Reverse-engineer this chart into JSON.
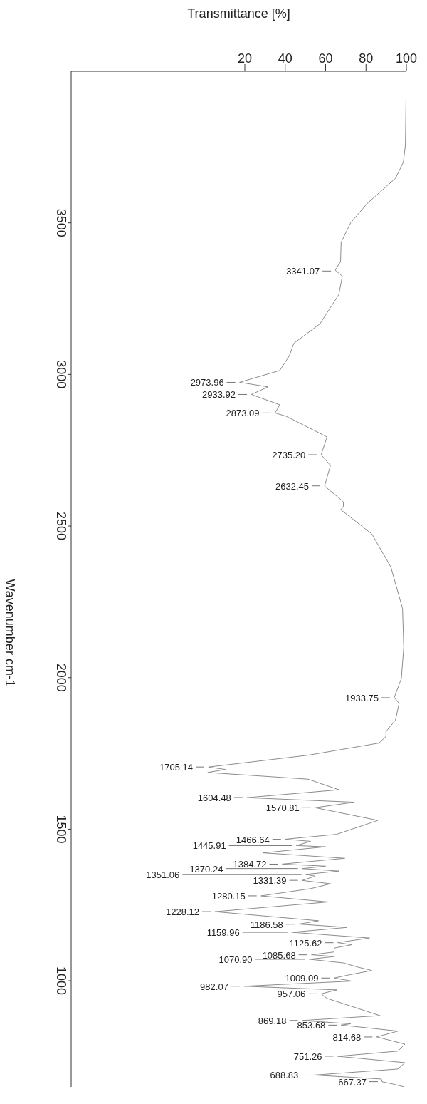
{
  "chart_data": {
    "type": "line",
    "orientation": "horizontal",
    "xlabel": "Transmittance [%]",
    "ylabel": "Wavenumber cm-1",
    "xlim": [
      -66,
      100
    ],
    "xticks": [
      20,
      40,
      60,
      80,
      100
    ],
    "ylim": [
      650,
      4000
    ],
    "yticks": [
      1000,
      1500,
      2000,
      2500,
      3000,
      3500
    ],
    "series": [
      {
        "color": "#8c8c8c",
        "x": [
          4000,
          3900,
          3756,
          3700,
          3647,
          3564,
          3500,
          3436,
          3372,
          3344,
          3324,
          3263,
          3167,
          3103,
          3061,
          3013,
          2974,
          2959,
          2934,
          2900,
          2873,
          2862,
          2794,
          2735,
          2700,
          2632,
          2580,
          2564,
          2554,
          2474,
          2365,
          2228,
          2099,
          1997,
          1934,
          1915,
          1860,
          1822,
          1806,
          1784,
          1744,
          1705,
          1697,
          1687,
          1665,
          1630,
          1604,
          1589,
          1571,
          1529,
          1483,
          1467,
          1460,
          1446,
          1442,
          1422,
          1404,
          1385,
          1378,
          1370,
          1362,
          1351,
          1345,
          1331,
          1320,
          1304,
          1280,
          1260,
          1228,
          1198,
          1187,
          1176,
          1160,
          1141,
          1126,
          1119,
          1108,
          1095,
          1086,
          1080,
          1071,
          1059,
          1045,
          1034,
          1020,
          1009,
          999,
          982,
          970,
          957,
          942,
          885,
          869,
          858,
          854,
          834,
          815,
          791,
          768,
          751,
          730,
          709,
          689,
          676,
          667,
          660,
          650
        ],
        "values": [
          100,
          99.8,
          99.5,
          98.5,
          94.6,
          80.6,
          72.4,
          67.7,
          67.4,
          64.8,
          68.3,
          66.5,
          57.2,
          44.3,
          42,
          37.3,
          17.4,
          31.5,
          23.2,
          37.3,
          35,
          40.5,
          60.7,
          57.8,
          62.4,
          59.5,
          68.8,
          68.8,
          67.5,
          82.9,
          92.3,
          98.1,
          98.7,
          97.5,
          94,
          96.4,
          94.6,
          89.9,
          89.9,
          86.4,
          51.3,
          2,
          10.4,
          1.6,
          51.3,
          66.6,
          21,
          74.2,
          54.8,
          85.9,
          65.4,
          40,
          52.6,
          45.5,
          60,
          29.1,
          69.5,
          38.5,
          60,
          48.4,
          66.6,
          50.2,
          54.9,
          48.4,
          62.5,
          52.6,
          28,
          61.3,
          5.2,
          56.5,
          46.7,
          70.6,
          43.2,
          81.8,
          66,
          73,
          64.3,
          64.2,
          53,
          64.2,
          51.9,
          68.8,
          76,
          82.9,
          72,
          64.2,
          73,
          19.6,
          65.5,
          57.8,
          60.7,
          87,
          48.4,
          72.4,
          67.7,
          95.8,
          85.3,
          99.3,
          95.8,
          66,
          99.3,
          95.8,
          54.3,
          87.6,
          88,
          93,
          99
        ]
      }
    ],
    "annotations": [
      {
        "text": "3341.07",
        "x": 64.8,
        "y": 3341.07
      },
      {
        "text": "2973.96",
        "x": 17.4,
        "y": 2973.96
      },
      {
        "text": "2933.92",
        "x": 23.2,
        "y": 2933.92
      },
      {
        "text": "2873.09",
        "x": 35,
        "y": 2873.09
      },
      {
        "text": "2735.20",
        "x": 57.8,
        "y": 2735.2
      },
      {
        "text": "2632.45",
        "x": 59.5,
        "y": 2632.45
      },
      {
        "text": "1933.75",
        "x": 94,
        "y": 1933.75
      },
      {
        "text": "1705.14",
        "x": 2,
        "y": 1705.14
      },
      {
        "text": "1604.48",
        "x": 21,
        "y": 1604.48
      },
      {
        "text": "1570.81",
        "x": 54.8,
        "y": 1570.81
      },
      {
        "text": "1466.64",
        "x": 40,
        "y": 1466.64
      },
      {
        "text": "1445.91",
        "x": 45.5,
        "y": 1445.91
      },
      {
        "text": "1384.72",
        "x": 38.5,
        "y": 1384.72
      },
      {
        "text": "1370.24",
        "x": 48.4,
        "y": 1370.24
      },
      {
        "text": "1351.06",
        "x": 50.2,
        "y": 1351.06
      },
      {
        "text": "1331.39",
        "x": 48.4,
        "y": 1331.39
      },
      {
        "text": "1280.15",
        "x": 28,
        "y": 1280.15
      },
      {
        "text": "1228.12",
        "x": 5.2,
        "y": 1228.12
      },
      {
        "text": "1186.58",
        "x": 46.7,
        "y": 1186.58
      },
      {
        "text": "1159.96",
        "x": 43.2,
        "y": 1159.96
      },
      {
        "text": "1125.62",
        "x": 66,
        "y": 1125.62
      },
      {
        "text": "1085.68",
        "x": 53,
        "y": 1085.68
      },
      {
        "text": "1070.90",
        "x": 51.9,
        "y": 1070.9
      },
      {
        "text": "1009.09",
        "x": 64.2,
        "y": 1009.09
      },
      {
        "text": "982.07",
        "x": 19.6,
        "y": 982.07
      },
      {
        "text": "957.06",
        "x": 57.8,
        "y": 957.06
      },
      {
        "text": "869.18",
        "x": 48.4,
        "y": 869.18
      },
      {
        "text": "853.68",
        "x": 67.7,
        "y": 853.68
      },
      {
        "text": "814.68",
        "x": 85.3,
        "y": 814.68
      },
      {
        "text": "751.26",
        "x": 66,
        "y": 751.26
      },
      {
        "text": "688.83",
        "x": 54.3,
        "y": 688.83
      },
      {
        "text": "667.37",
        "x": 88,
        "y": 667.37
      }
    ]
  }
}
